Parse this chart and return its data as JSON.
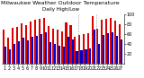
{
  "title": "Milwaukee Weather Outdoor Temperature",
  "subtitle": "Daily High/Low",
  "highs": [
    68,
    52,
    72,
    75,
    82,
    78,
    85,
    88,
    90,
    92,
    76,
    70,
    68,
    65,
    84,
    78,
    55,
    58,
    60,
    62,
    95,
    70,
    88,
    90,
    92,
    86,
    80
  ],
  "lows": [
    35,
    30,
    40,
    45,
    52,
    48,
    55,
    57,
    60,
    63,
    44,
    40,
    37,
    35,
    55,
    50,
    25,
    27,
    30,
    32,
    68,
    40,
    58,
    62,
    64,
    57,
    50
  ],
  "labels": [
    "1",
    "2",
    "3",
    "4",
    "5",
    "6",
    "7",
    "8",
    "9",
    "10",
    "11",
    "12",
    "13",
    "14",
    "15",
    "16",
    "17",
    "18",
    "19",
    "20",
    "21",
    "22",
    "23",
    "24",
    "25",
    "26",
    "27"
  ],
  "high_color": "#dd0000",
  "low_color": "#0000cc",
  "background": "#ffffff",
  "ylim": [
    0,
    100
  ],
  "yticks": [
    20,
    40,
    60,
    80,
    100
  ],
  "dashed_lines": [
    16.5,
    20.5
  ],
  "bar_width": 0.42,
  "title_fontsize": 4.5,
  "tick_fontsize": 3.5
}
